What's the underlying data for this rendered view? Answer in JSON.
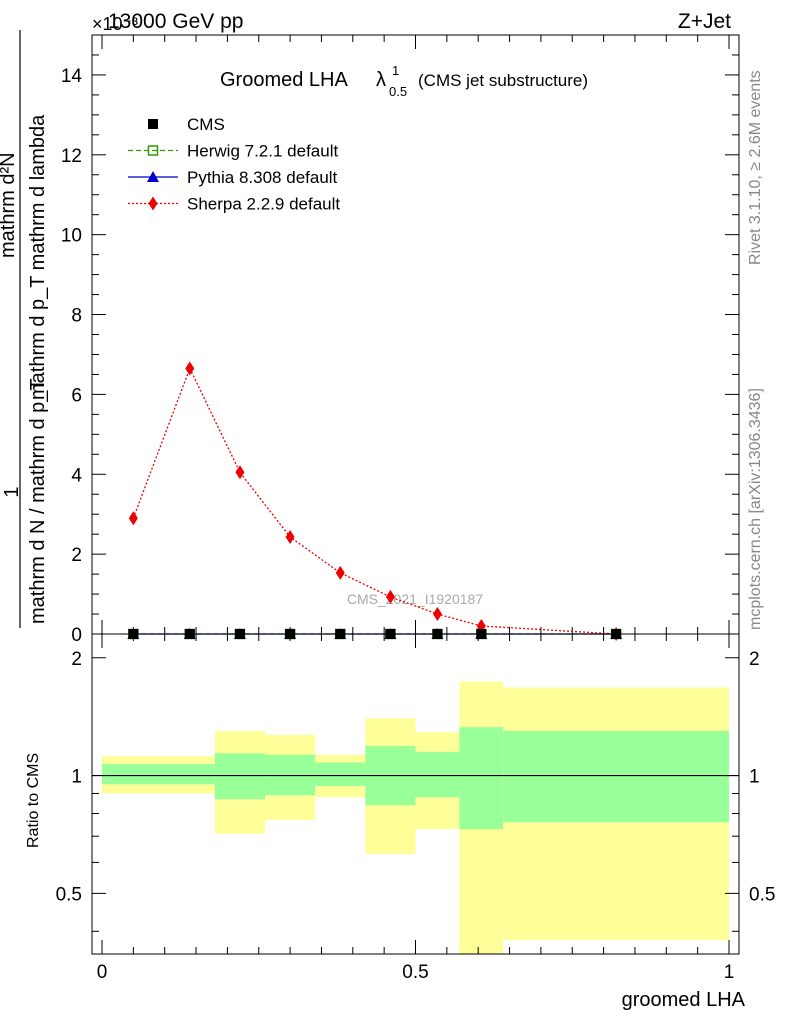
{
  "header": {
    "energy_label": "13000 GeV pp",
    "process_label": "Z+Jet",
    "exponent_label": "×10⁻³"
  },
  "side_labels": {
    "rivet": "Rivet 3.1.10, ≥ 2.6M events",
    "mcplots": "mcplots.cern.ch [arXiv:1306.3436]"
  },
  "chart_data": [
    {
      "type": "line",
      "title_main": "Groomed LHA",
      "title_lambda": "λ",
      "title_sup": "1",
      "title_sub": "0.5",
      "title_note": "(CMS jet substructure)",
      "watermark": "CMS_2021_I1920187",
      "ylabel_top": "1",
      "ylabel_bottom": "mathrm d N / mathrm d p_T",
      "ylabel_num": "mathrm d²N",
      "ylabel_den": "mathrm d p_T mathrm d lambda",
      "ylim": [
        0,
        15
      ],
      "yticks": [
        0,
        2,
        4,
        6,
        8,
        10,
        12,
        14
      ],
      "xlim": [
        0,
        1
      ],
      "grid": false,
      "legend_position": "top-left",
      "legend": [
        {
          "name": "CMS",
          "color": "#000000",
          "marker": "square"
        },
        {
          "name": "Herwig 7.2.1 default",
          "color": "#339900",
          "marker": "open-square",
          "dash": "dashed"
        },
        {
          "name": "Pythia 8.308 default",
          "color": "#0000cc",
          "marker": "triangle",
          "dash": "solid"
        },
        {
          "name": "Sherpa 2.2.9 default",
          "color": "#ee0000",
          "marker": "diamond",
          "dash": "dotted"
        }
      ],
      "x": [
        0.05,
        0.14,
        0.22,
        0.3,
        0.38,
        0.46,
        0.535,
        0.605,
        0.82
      ],
      "series": [
        {
          "name": "CMS",
          "values": [
            0,
            0,
            0,
            0,
            0,
            0,
            0,
            0,
            0
          ]
        },
        {
          "name": "Herwig 7.2.1 default",
          "values": [
            0,
            0,
            0,
            0,
            0,
            0,
            0,
            0,
            0
          ]
        },
        {
          "name": "Pythia 8.308 default",
          "values": [
            0,
            0,
            0,
            0,
            0,
            0,
            0,
            0,
            0
          ]
        },
        {
          "name": "Sherpa 2.2.9 default",
          "values": [
            2.9,
            6.65,
            4.05,
            2.43,
            1.53,
            0.93,
            0.5,
            0.2,
            0.0
          ]
        }
      ]
    },
    {
      "type": "area",
      "ylabel": "Ratio to CMS",
      "xlabel": "groomed LHA",
      "xlim": [
        0,
        1
      ],
      "xticks": [
        0,
        0.5,
        1
      ],
      "ylim": [
        0.35,
        2.3
      ],
      "yticks": [
        0.5,
        1,
        2
      ],
      "ytick_labels": [
        "0.5",
        "1",
        "2"
      ],
      "xtick_labels": [
        "0",
        "0.5",
        "1"
      ],
      "bins": [
        {
          "lo": 0.0,
          "hi": 0.18,
          "y1": [
            0.95,
            1.07
          ],
          "y2": [
            0.9,
            1.12
          ]
        },
        {
          "lo": 0.18,
          "hi": 0.26,
          "y1": [
            0.87,
            1.14
          ],
          "y2": [
            0.71,
            1.3
          ]
        },
        {
          "lo": 0.26,
          "hi": 0.34,
          "y1": [
            0.89,
            1.13
          ],
          "y2": [
            0.77,
            1.27
          ]
        },
        {
          "lo": 0.34,
          "hi": 0.42,
          "y1": [
            0.94,
            1.08
          ],
          "y2": [
            0.88,
            1.13
          ]
        },
        {
          "lo": 0.42,
          "hi": 0.5,
          "y1": [
            0.84,
            1.19
          ],
          "y2": [
            0.63,
            1.4
          ]
        },
        {
          "lo": 0.5,
          "hi": 0.57,
          "y1": [
            0.88,
            1.15
          ],
          "y2": [
            0.73,
            1.29
          ]
        },
        {
          "lo": 0.57,
          "hi": 0.64,
          "y1": [
            0.73,
            1.33
          ],
          "y2": [
            0.35,
            1.74
          ]
        },
        {
          "lo": 0.64,
          "hi": 1.0,
          "y1": [
            0.76,
            1.3
          ],
          "y2": [
            0.38,
            1.68
          ]
        }
      ],
      "colors": {
        "inner": "#99ff99",
        "outer": "#ffff99"
      }
    }
  ]
}
